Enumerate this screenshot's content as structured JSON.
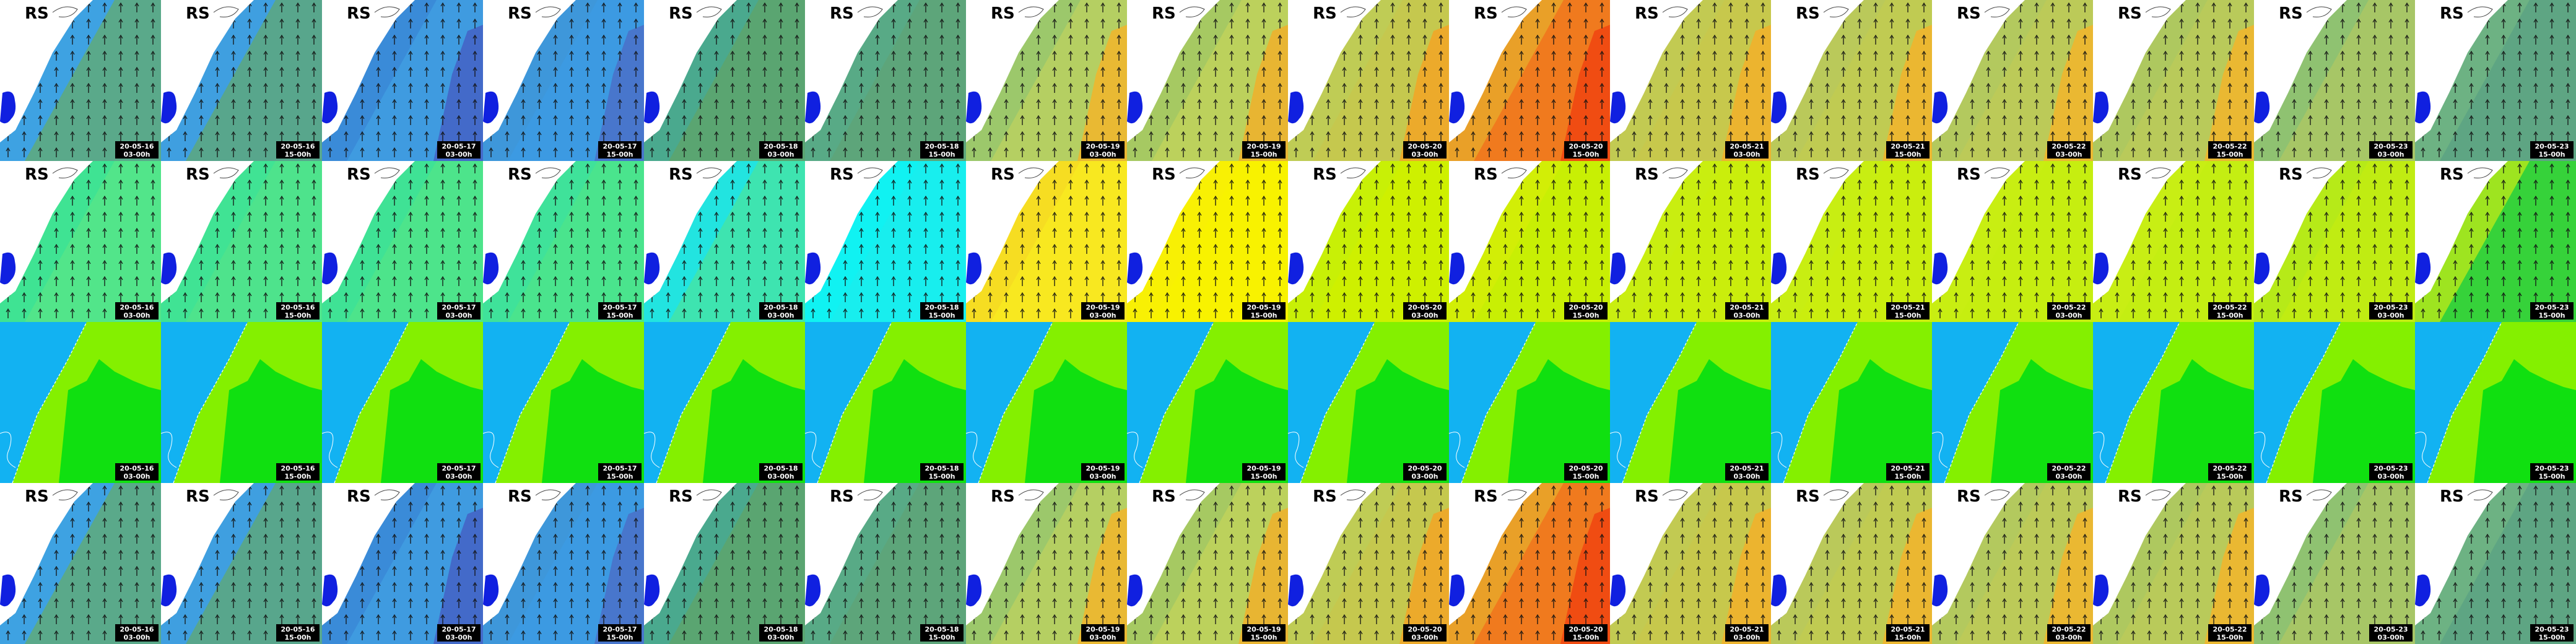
{
  "region_label": "RS",
  "columns": [
    {
      "date": "20-05-16",
      "time": "03-00h"
    },
    {
      "date": "20-05-16",
      "time": "15-00h"
    },
    {
      "date": "20-05-17",
      "time": "03-00h"
    },
    {
      "date": "20-05-17",
      "time": "15-00h"
    },
    {
      "date": "20-05-18",
      "time": "03-00h"
    },
    {
      "date": "20-05-18",
      "time": "15-00h"
    },
    {
      "date": "20-05-19",
      "time": "03-00h"
    },
    {
      "date": "20-05-19",
      "time": "15-00h"
    },
    {
      "date": "20-05-20",
      "time": "03-00h"
    },
    {
      "date": "20-05-20",
      "time": "15-00h"
    },
    {
      "date": "20-05-21",
      "time": "03-00h"
    },
    {
      "date": "20-05-21",
      "time": "15-00h"
    },
    {
      "date": "20-05-22",
      "time": "03-00h"
    },
    {
      "date": "20-05-22",
      "time": "15-00h"
    },
    {
      "date": "20-05-23",
      "time": "03-00h"
    },
    {
      "date": "20-05-23",
      "time": "15-00h"
    }
  ]
}
